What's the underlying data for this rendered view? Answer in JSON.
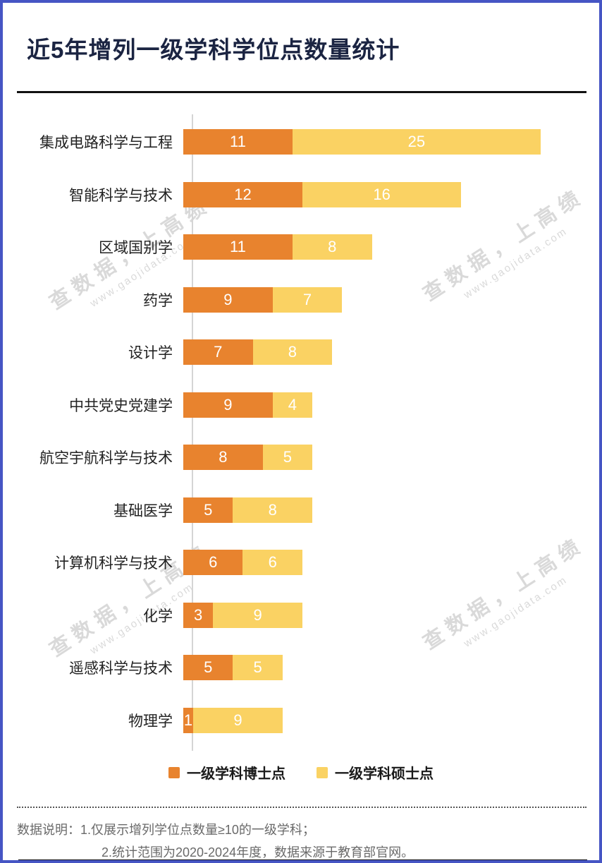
{
  "page": {
    "border_color": "#4655c4",
    "background": "#ffffff"
  },
  "header": {
    "title": "近5年增列一级学科学位点数量统计",
    "title_color": "#1b2442"
  },
  "chart_data": {
    "type": "bar",
    "orientation": "horizontal",
    "stacked": true,
    "title": "近5年增列一级学科学位点数量统计",
    "categories": [
      "集成电路科学与工程",
      "智能科学与技术",
      "区域国别学",
      "药学",
      "设计学",
      "中共党史党建学",
      "航空宇航科学与技术",
      "基础医学",
      "计算机科学与技术",
      "化学",
      "遥感科学与技术",
      "物理学"
    ],
    "series": [
      {
        "name": "一级学科博士点",
        "color": "#e8832e",
        "values": [
          11,
          12,
          11,
          9,
          7,
          9,
          8,
          5,
          6,
          3,
          5,
          1
        ]
      },
      {
        "name": "一级学科硕士点",
        "color": "#fad263",
        "values": [
          25,
          16,
          8,
          7,
          8,
          4,
          5,
          8,
          6,
          9,
          5,
          9
        ]
      }
    ],
    "totals": [
      36,
      28,
      19,
      16,
      15,
      13,
      13,
      13,
      12,
      12,
      10,
      10
    ],
    "xlim": [
      0,
      36
    ],
    "grid": false,
    "axis_color": "#d5d5d5",
    "value_label_color": "#ffffff",
    "legend_position": "bottom"
  },
  "legend": {
    "items": [
      {
        "label": "一级学科博士点",
        "color": "#e8832e"
      },
      {
        "label": "一级学科硕士点",
        "color": "#fad263"
      }
    ]
  },
  "watermark": {
    "line1": "查数据，上高绩",
    "line2": "www.gaojidata.com"
  },
  "footer": {
    "label": "数据说明：",
    "note1": "1.仅展示增列学位点数量≥10的一级学科；",
    "note2": "2.统计范围为2020-2024年度，数据来源于教育部官网。"
  }
}
